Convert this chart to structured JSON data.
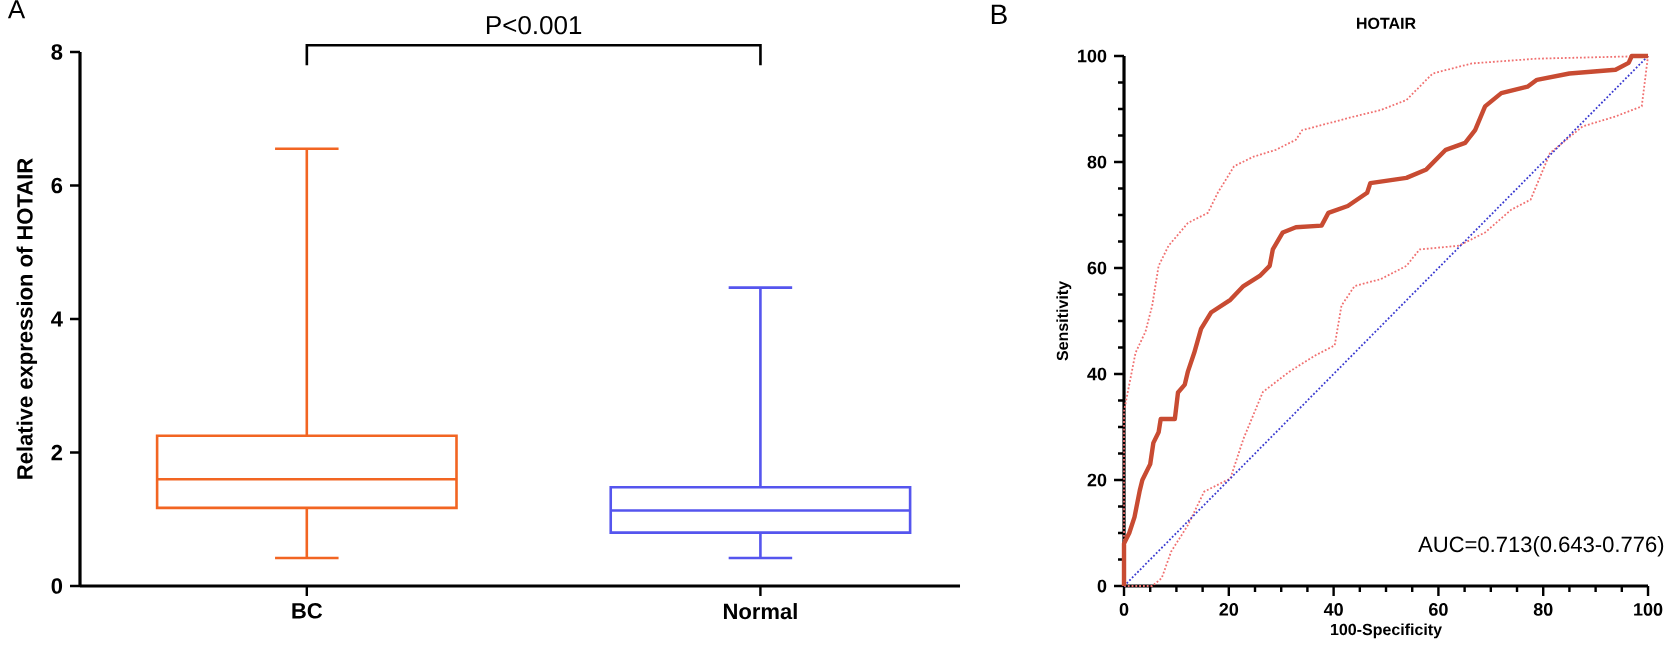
{
  "chart_data": [
    {
      "type": "box",
      "ylabel": "Relative expression of HOTAIR",
      "categories": [
        "BC",
        "Normal"
      ],
      "colors": [
        "#f26522",
        "#5555ee"
      ],
      "boxes": [
        {
          "low": 0.42,
          "q1": 1.17,
          "median": 1.6,
          "q3": 2.25,
          "high": 6.55
        },
        {
          "low": 0.42,
          "q1": 0.8,
          "median": 1.13,
          "q3": 1.48,
          "high": 4.47
        }
      ],
      "ylim": [
        0,
        8
      ],
      "yticks": [
        0,
        2,
        4,
        6,
        8
      ],
      "annotations": [
        "A",
        "P<0.001"
      ]
    },
    {
      "type": "line",
      "title": "HOTAIR",
      "xlabel": "100-Specificity",
      "ylabel": "Sensitivity",
      "xlim": [
        0,
        100
      ],
      "ylim": [
        0,
        100
      ],
      "xticks": [
        0,
        20,
        40,
        60,
        80,
        100
      ],
      "yticks": [
        0,
        20,
        40,
        60,
        80,
        100
      ],
      "series": [
        {
          "color": "#f07070",
          "line_style": "dotted",
          "x": [
            0,
            0,
            1.4,
            2.2,
            4.1,
            5.4,
            6.6,
            8.5,
            12.2,
            16,
            17.9,
            21,
            24.7,
            29,
            32.8,
            34,
            44,
            49,
            53.9,
            58.9,
            66.4,
            78.8,
            100
          ],
          "values": [
            0,
            33,
            40,
            44,
            48,
            53,
            60.4,
            64.2,
            68.5,
            70.4,
            74.2,
            79.2,
            81,
            82.3,
            84.2,
            86,
            88.6,
            89.8,
            91.7,
            96.7,
            98.6,
            99.5,
            100
          ]
        },
        {
          "color": "#f07070",
          "line_style": "dotted",
          "x": [
            0,
            5.4,
            7.2,
            9,
            12.2,
            15.3,
            20.3,
            22.8,
            26.5,
            31.5,
            36.5,
            40.2,
            41.5,
            44,
            49,
            53.9,
            56.4,
            63.9,
            68.9,
            73.9,
            77.6,
            81.3,
            87.5,
            93.8,
            98.8,
            100
          ],
          "values": [
            0,
            0,
            1.5,
            6.5,
            11.5,
            17.8,
            20.3,
            27.8,
            36.6,
            40.4,
            43.5,
            45.4,
            52.9,
            56.6,
            57.9,
            60.4,
            63.5,
            64.2,
            66.7,
            71,
            72.9,
            81.7,
            86.7,
            88.6,
            90.5,
            100
          ]
        },
        {
          "color": "#3a3ad0",
          "line_style": "dotted",
          "x": [
            0,
            100
          ],
          "values": [
            0,
            100
          ]
        },
        {
          "color": "#c84b32",
          "line_style": "solid",
          "x": [
            0,
            0,
            1,
            2,
            3,
            3.5,
            5,
            5.6,
            6.6,
            7,
            9.7,
            10.3,
            11.6,
            12.2,
            13.4,
            14.7,
            16.6,
            20.3,
            22.8,
            25.9,
            27.8,
            28.4,
            30.3,
            32.8,
            37.7,
            39,
            42.7,
            46.4,
            47,
            53.9,
            57.7,
            61.4,
            65.1,
            67,
            68.9,
            72,
            77,
            78.8,
            85,
            93.8,
            96.3,
            96.9,
            100
          ],
          "values": [
            0,
            8,
            10,
            13,
            18,
            20,
            23,
            27,
            29,
            31.5,
            31.5,
            36.5,
            38,
            40.5,
            44,
            48.5,
            51.6,
            54,
            56.6,
            58.5,
            60.4,
            63.5,
            66.7,
            67.7,
            68,
            70.4,
            71.7,
            74.2,
            76,
            77,
            78.6,
            82.3,
            83.6,
            86,
            90.5,
            93,
            94.2,
            95.5,
            96.7,
            97.4,
            98.7,
            100,
            100
          ]
        }
      ],
      "annotations": [
        "B",
        "AUC=0.713(0.643-0.776)"
      ]
    }
  ]
}
